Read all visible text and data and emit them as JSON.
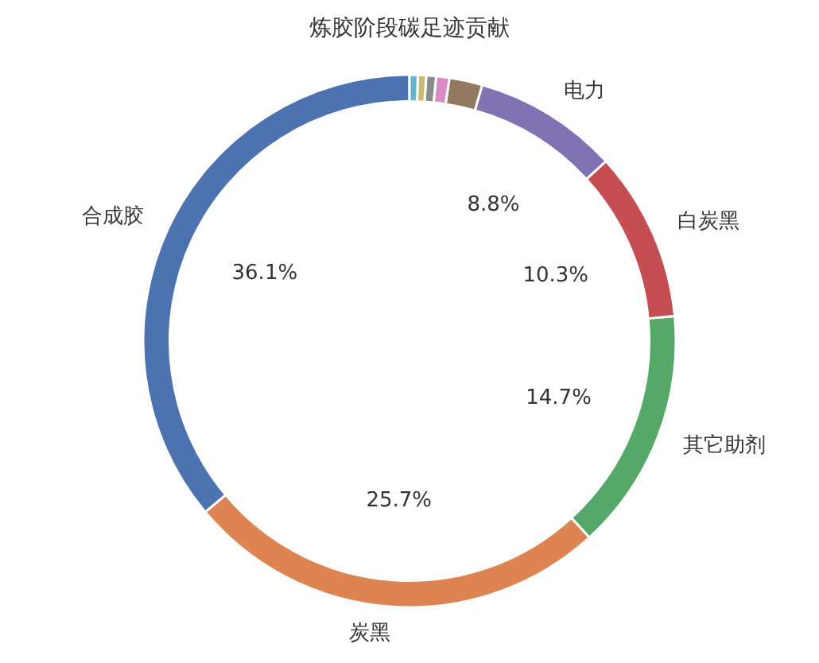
{
  "chart_data": {
    "type": "donut",
    "title": "炼胶阶段碳足迹贡献",
    "categories": [
      "合成胶",
      "炭黑",
      "其它助剂",
      "白炭黑",
      "电力",
      null,
      null,
      null,
      null,
      null
    ],
    "values": [
      36.1,
      25.7,
      14.7,
      10.3,
      8.8,
      2.0,
      0.8,
      0.6,
      0.5,
      0.5
    ],
    "colors": [
      "#4c72b0",
      "#dd8452",
      "#55a868",
      "#c44e52",
      "#8172b3",
      "#937860",
      "#da8bc3",
      "#8c8c8c",
      "#ccb974",
      "#64b5cd"
    ],
    "value_labels": [
      "36.1%",
      "25.7%",
      "14.7%",
      "10.3%",
      "8.8%",
      null,
      null,
      null,
      null,
      null
    ]
  }
}
